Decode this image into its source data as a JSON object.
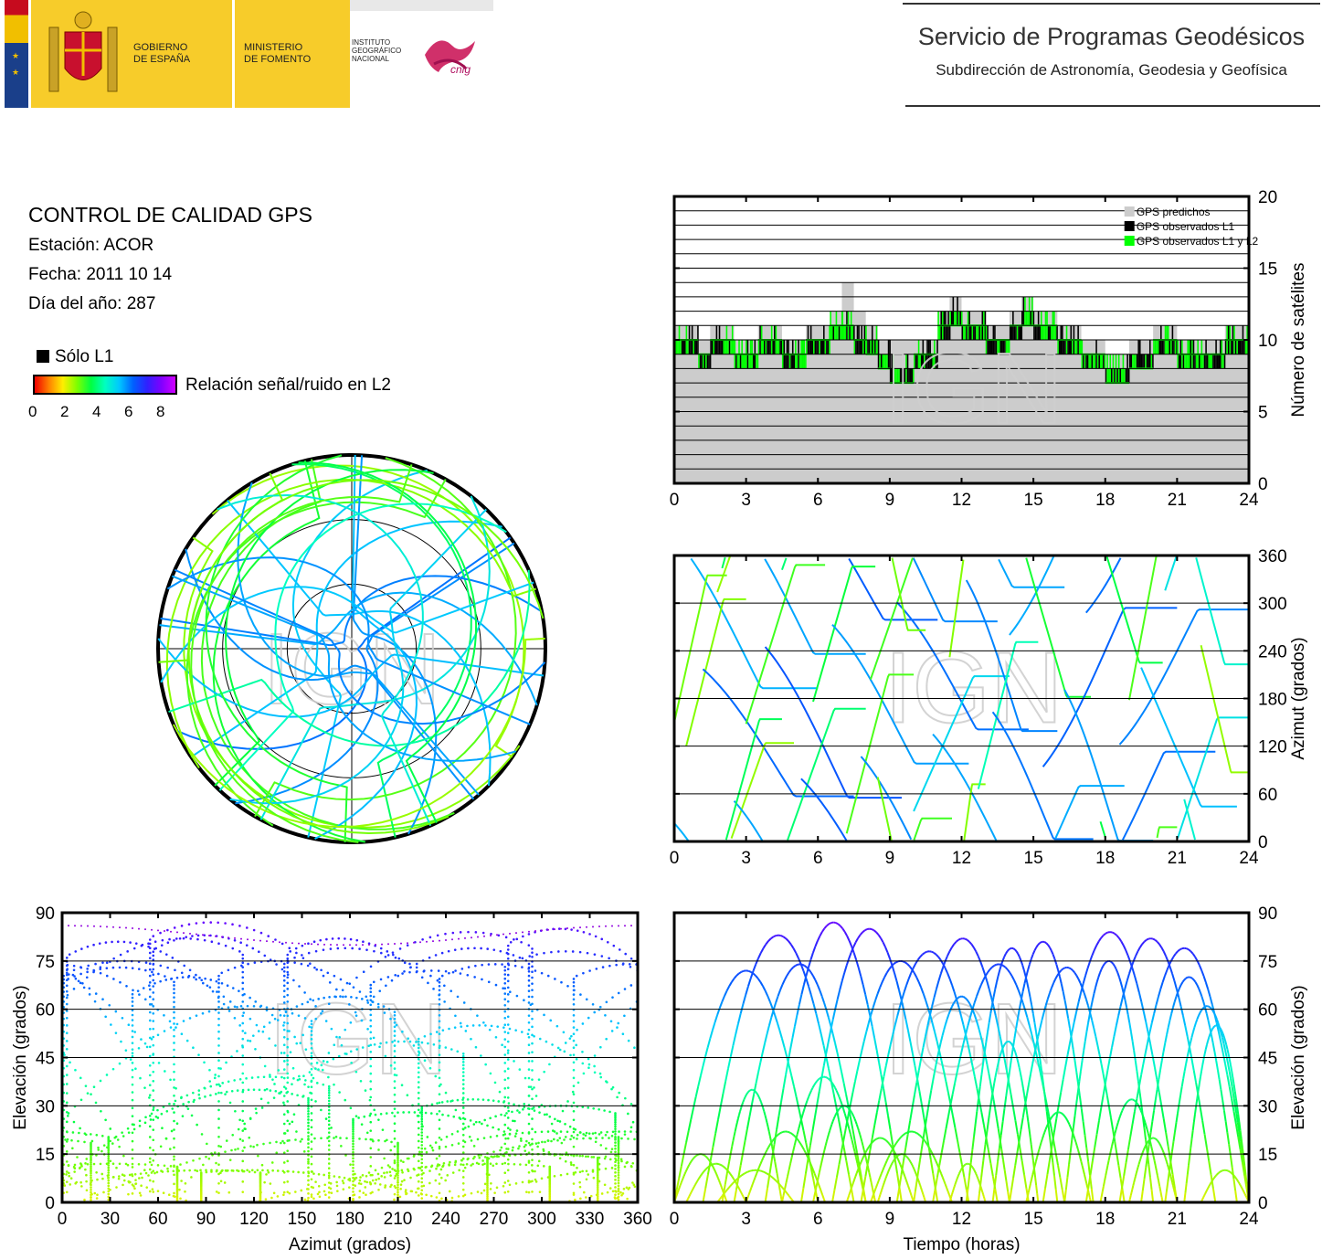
{
  "header": {
    "gobierno": [
      "GOBIERNO",
      "DE ESPAÑA"
    ],
    "ministerio": [
      "MINISTERIO",
      "DE FOMENTO"
    ],
    "instituto": [
      "INSTITUTO",
      "GEOGRÁFICO",
      "NACIONAL"
    ],
    "cnig_logo_text": "cnig",
    "title": "Servicio de Programas Geodésicos",
    "subtitle": "Subdirección de Astronomía, Geodesia y Geofísica"
  },
  "info": {
    "title": "CONTROL DE CALIDAD GPS",
    "station": "Estación: ACOR",
    "date": "Fecha: 2011 10 14",
    "doy": "Día del año: 287"
  },
  "legend": {
    "l1_only": "Sólo L1",
    "colorbar_label": "Relación señal/ruido en L2",
    "colorbar_ticks": [
      "0",
      "2",
      "4",
      "6",
      "8"
    ]
  },
  "watermark": "IGN",
  "colors": {
    "predicted": "#cccccc",
    "observed_l1": "#000000",
    "observed_l1_l2": "#00ff00"
  },
  "chart_data": [
    {
      "type": "area",
      "id": "satellite-count",
      "xlabel": "",
      "ylabel": "Número de satélites",
      "xlim": [
        0,
        24
      ],
      "ylim": [
        0,
        20
      ],
      "xticks": [
        "0",
        "3",
        "6",
        "9",
        "12",
        "15",
        "18",
        "21",
        "24"
      ],
      "yticks": [
        "0",
        "5",
        "10",
        "15",
        "20"
      ],
      "grid": true,
      "legend_position": "top-right",
      "series": [
        {
          "name": "GPS predichos",
          "x": [
            0,
            1,
            1.5,
            2.5,
            3.5,
            4.5,
            5.5,
            6.5,
            7,
            7.5,
            8,
            8.5,
            9,
            10,
            11,
            11.5,
            12,
            13,
            14,
            14.5,
            15,
            16,
            17,
            18,
            19,
            20,
            21,
            22,
            23,
            24
          ],
          "values": [
            11,
            10,
            11,
            10,
            11,
            10,
            11,
            12,
            14,
            12,
            11,
            10,
            10,
            10,
            12,
            13,
            12,
            11,
            12,
            13,
            12,
            11,
            10,
            9,
            10,
            11,
            10,
            10,
            11,
            10
          ]
        },
        {
          "name": "GPS observados L1",
          "x": [
            0,
            1,
            1.5,
            2.5,
            3.5,
            4.5,
            5.5,
            6.5,
            7,
            7.5,
            8,
            8.5,
            9,
            10,
            11,
            11.5,
            12,
            13,
            14,
            14.5,
            15,
            16,
            17,
            18,
            19,
            20,
            21,
            22,
            23,
            24
          ],
          "values": [
            10,
            9,
            10,
            9,
            10,
            9,
            10,
            11,
            11,
            10,
            10,
            9,
            8,
            9,
            11,
            12,
            11,
            10,
            11,
            12,
            11,
            10,
            9,
            8,
            9,
            10,
            9,
            9,
            10,
            9
          ]
        },
        {
          "name": "GPS observados L1 y L2",
          "x": [
            0,
            1,
            1.5,
            2.5,
            3.5,
            4.5,
            5.5,
            6.5,
            7,
            7.5,
            8,
            8.5,
            9,
            10,
            11,
            11.5,
            12,
            13,
            14,
            14.5,
            15,
            16,
            17,
            18,
            19,
            20,
            21,
            22,
            23,
            24
          ],
          "values": [
            10,
            9,
            10,
            9,
            10,
            9,
            10,
            11,
            11,
            10,
            9,
            8,
            7,
            9,
            11,
            11,
            11,
            10,
            11,
            11,
            11,
            10,
            9,
            7,
            8,
            10,
            9,
            9,
            10,
            9
          ]
        }
      ]
    },
    {
      "type": "scatter",
      "id": "azimuth-vs-time",
      "xlabel": "",
      "ylabel": "Azimut (grados)",
      "xlim": [
        0,
        24
      ],
      "ylim": [
        0,
        360
      ],
      "xticks": [
        "0",
        "3",
        "6",
        "9",
        "12",
        "15",
        "18",
        "21",
        "24"
      ],
      "yticks": [
        "0",
        "60",
        "120",
        "180",
        "240",
        "300",
        "360"
      ],
      "grid": true
    },
    {
      "type": "scatter",
      "id": "elevation-vs-azimuth",
      "xlabel": "Azimut (grados)",
      "ylabel": "Elevación (grados)",
      "xlim": [
        0,
        360
      ],
      "ylim": [
        0,
        90
      ],
      "xticks": [
        "0",
        "30",
        "60",
        "90",
        "120",
        "150",
        "180",
        "210",
        "240",
        "270",
        "300",
        "330",
        "360"
      ],
      "yticks": [
        "0",
        "15",
        "30",
        "45",
        "60",
        "75",
        "90"
      ],
      "grid": true
    },
    {
      "type": "scatter",
      "id": "elevation-vs-time",
      "xlabel": "Tiempo (horas)",
      "ylabel": "Elevación (grados)",
      "xlim": [
        0,
        24
      ],
      "ylim": [
        0,
        90
      ],
      "xticks": [
        "0",
        "3",
        "6",
        "9",
        "12",
        "15",
        "18",
        "21",
        "24"
      ],
      "yticks": [
        "0",
        "15",
        "30",
        "45",
        "60",
        "75",
        "90"
      ],
      "grid": true
    },
    {
      "type": "scatter",
      "id": "skyplot",
      "projection": "polar",
      "rings_elevation": [
        0,
        30,
        60
      ]
    }
  ]
}
